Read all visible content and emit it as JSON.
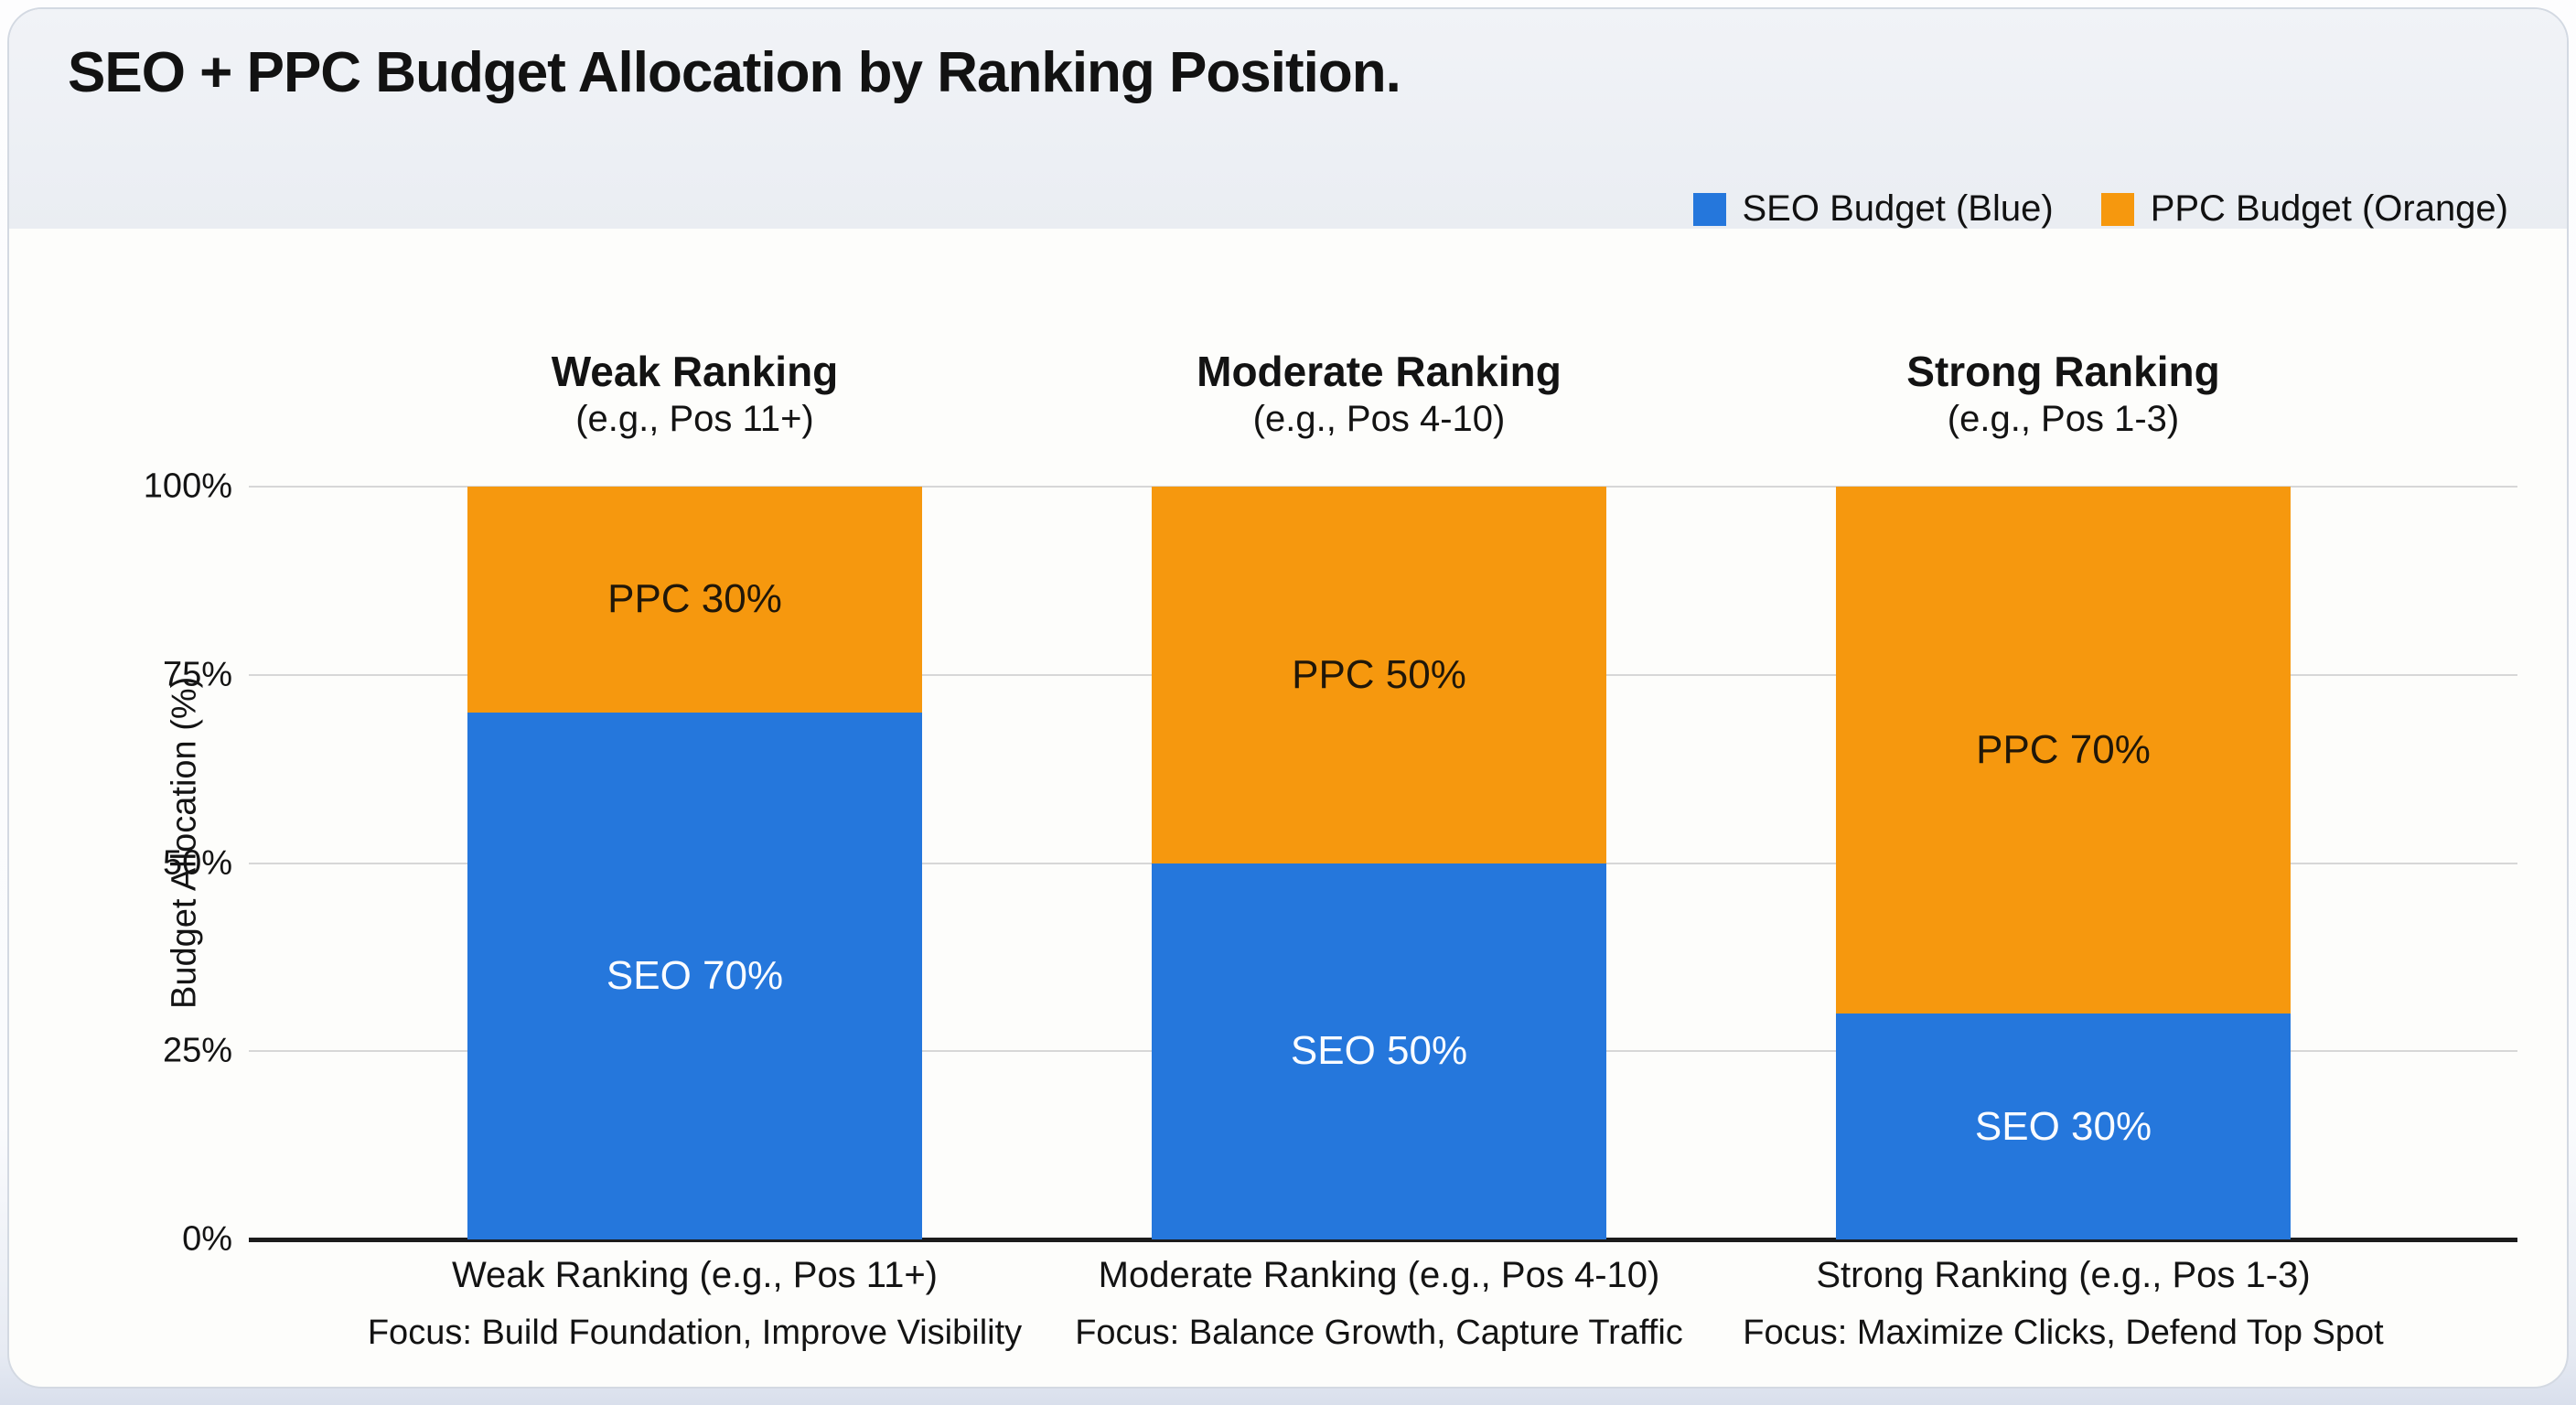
{
  "header": {
    "title": "SEO + PPC Budget Allocation by Ranking Position.",
    "legend": [
      {
        "name": "seo-legend",
        "label": "SEO Budget (Blue)",
        "color": "#2577DC"
      },
      {
        "name": "ppc-legend",
        "label": "PPC Budget (Orange)",
        "color": "#F6980E"
      }
    ]
  },
  "y_axis": {
    "title": "Budget Allocation (%)"
  },
  "chart_data": {
    "type": "bar",
    "stacked": true,
    "title": "SEO + PPC Budget Allocation by Ranking Position.",
    "xlabel": "",
    "ylabel": "Budget Allocation (%)",
    "ylim": [
      0,
      100
    ],
    "grid": true,
    "legend_position": "top-right",
    "y_ticks": [
      {
        "label": "0%",
        "value": 0
      },
      {
        "label": "25%",
        "value": 25
      },
      {
        "label": "50%",
        "value": 50
      },
      {
        "label": "75%",
        "value": 75
      },
      {
        "label": "100%",
        "value": 100
      }
    ],
    "categories": [
      "Weak Ranking (e.g., Pos 11+)",
      "Moderate Ranking (e.g., Pos 4-10)",
      "Strong Ranking (e.g., Pos 1-3)"
    ],
    "series": [
      {
        "name": "SEO Budget (Blue)",
        "color": "#2577DC",
        "values": [
          70,
          50,
          30
        ]
      },
      {
        "name": "PPC Budget (Orange)",
        "color": "#F6980E",
        "values": [
          30,
          50,
          70
        ]
      }
    ],
    "groups": [
      {
        "header": "Weak Ranking",
        "subheader": "(e.g., Pos 11+)",
        "seo": 70,
        "ppc": 30,
        "seo_label": "SEO 70%",
        "ppc_label": "PPC 30%",
        "x_label": "Weak Ranking (e.g., Pos 11+)",
        "focus": "Focus: Build Foundation, Improve Visibility"
      },
      {
        "header": "Moderate Ranking",
        "subheader": "(e.g., Pos 4-10)",
        "seo": 50,
        "ppc": 50,
        "seo_label": "SEO 50%",
        "ppc_label": "PPC 50%",
        "x_label": "Moderate Ranking (e.g., Pos 4-10)",
        "focus": "Focus: Balance Growth, Capture Traffic"
      },
      {
        "header": "Strong Ranking",
        "subheader": "(e.g., Pos 1-3)",
        "seo": 30,
        "ppc": 70,
        "seo_label": "SEO 30%",
        "ppc_label": "PPC 70%",
        "x_label": "Strong Ranking (e.g., Pos 1-3)",
        "focus": "Focus: Maximize Clicks, Defend Top Spot"
      }
    ],
    "colors": {
      "seo": "#2577DC",
      "ppc": "#F6980E",
      "seo_label_text": "#FAFCFF",
      "ppc_label_text": "#201709",
      "gridline": "#D7D7D7",
      "baseline": "#1C1C1C"
    }
  }
}
